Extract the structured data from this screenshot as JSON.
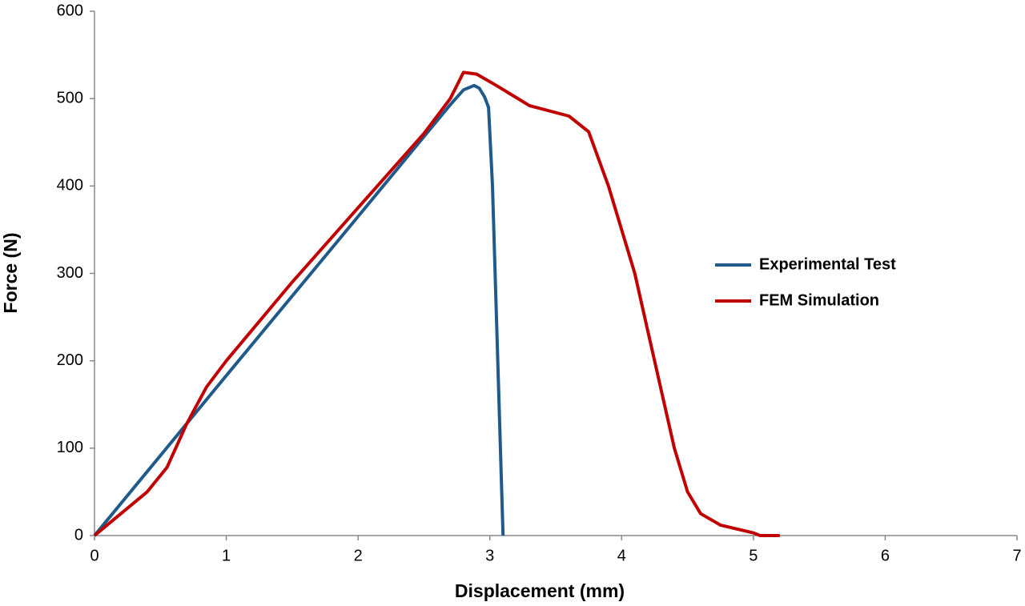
{
  "chart_data": {
    "type": "line",
    "xlabel": "Displacement  (mm)",
    "ylabel": "Force (N)",
    "xlim": [
      0,
      7
    ],
    "xticks": [
      0,
      1,
      2,
      3,
      4,
      5,
      6,
      7
    ],
    "ylim": [
      0,
      600
    ],
    "yticks": [
      0,
      100,
      200,
      300,
      400,
      500,
      600
    ],
    "grid": false,
    "legend": "right",
    "series": [
      {
        "name": "Experimental Test",
        "color": "#1f5a8a",
        "x": [
          0,
          1,
          2,
          2.7,
          2.8,
          2.88,
          2.92,
          2.96,
          2.99,
          3.02,
          3.06,
          3.1
        ],
        "values": [
          0,
          183,
          365,
          493,
          510,
          515,
          512,
          502,
          490,
          400,
          200,
          0
        ]
      },
      {
        "name": "FEM Simulation",
        "color": "#c00000",
        "x": [
          0,
          0.2,
          0.4,
          0.55,
          0.7,
          0.85,
          1,
          1.5,
          2,
          2.5,
          2.7,
          2.8,
          2.9,
          3.05,
          3.3,
          3.6,
          3.75,
          3.9,
          4.1,
          4.25,
          4.4,
          4.5,
          4.6,
          4.75,
          5,
          5.05,
          5.2
        ],
        "values": [
          0,
          25,
          50,
          78,
          128,
          170,
          200,
          290,
          375,
          460,
          500,
          530,
          528,
          515,
          492,
          480,
          462,
          400,
          300,
          200,
          100,
          50,
          25,
          12,
          3,
          0,
          0
        ]
      }
    ]
  }
}
